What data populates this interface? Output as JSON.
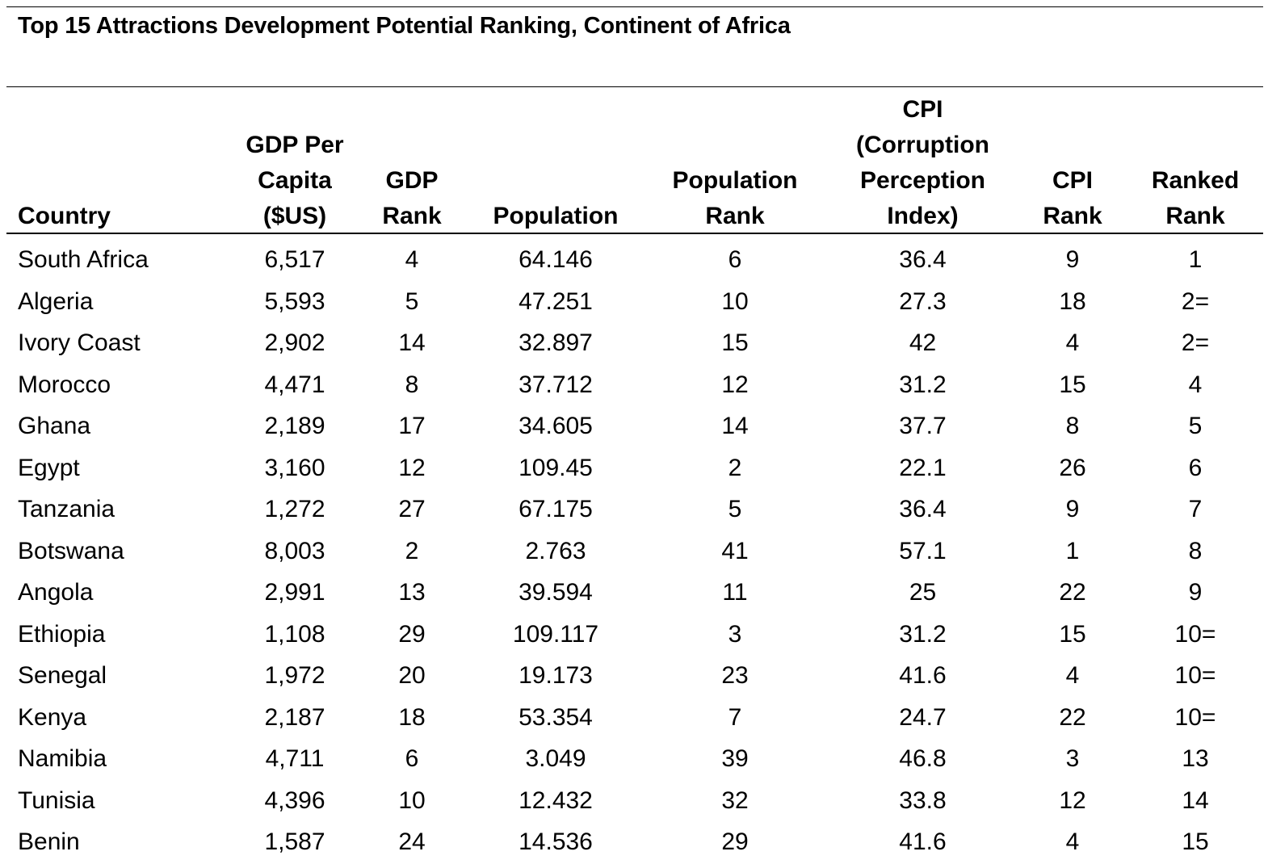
{
  "title": "Top 15 Attractions Development Potential Ranking, Continent of Africa",
  "chart_data": {
    "type": "table",
    "title": "Top 15 Attractions Development Potential Ranking, Continent of Africa",
    "columns": [
      "Country",
      "GDP Per\nCapita\n($US)",
      "GDP\nRank",
      "Population",
      "Population\nRank",
      "CPI\n(Corruption\nPerception\nIndex)",
      "CPI\nRank",
      "Ranked\nRank"
    ],
    "rows": [
      [
        "South Africa",
        "6,517",
        "4",
        "64.146",
        "6",
        "36.4",
        "9",
        "1"
      ],
      [
        "Algeria",
        "5,593",
        "5",
        "47.251",
        "10",
        "27.3",
        "18",
        "2="
      ],
      [
        "Ivory Coast",
        "2,902",
        "14",
        "32.897",
        "15",
        "42",
        "4",
        "2="
      ],
      [
        "Morocco",
        "4,471",
        "8",
        "37.712",
        "12",
        "31.2",
        "15",
        "4"
      ],
      [
        "Ghana",
        "2,189",
        "17",
        "34.605",
        "14",
        "37.7",
        "8",
        "5"
      ],
      [
        "Egypt",
        "3,160",
        "12",
        "109.45",
        "2",
        "22.1",
        "26",
        "6"
      ],
      [
        "Tanzania",
        "1,272",
        "27",
        "67.175",
        "5",
        "36.4",
        "9",
        "7"
      ],
      [
        "Botswana",
        "8,003",
        "2",
        "2.763",
        "41",
        "57.1",
        "1",
        "8"
      ],
      [
        "Angola",
        "2,991",
        "13",
        "39.594",
        "11",
        "25",
        "22",
        "9"
      ],
      [
        "Ethiopia",
        "1,108",
        "29",
        "109.117",
        "3",
        "31.2",
        "15",
        "10="
      ],
      [
        "Senegal",
        "1,972",
        "20",
        "19.173",
        "23",
        "41.6",
        "4",
        "10="
      ],
      [
        "Kenya",
        "2,187",
        "18",
        "53.354",
        "7",
        "24.7",
        "22",
        "10="
      ],
      [
        "Namibia",
        "4,711",
        "6",
        "3.049",
        "39",
        "46.8",
        "3",
        "13"
      ],
      [
        "Tunisia",
        "4,396",
        "10",
        "12.432",
        "32",
        "33.8",
        "12",
        "14"
      ],
      [
        "Benin",
        "1,587",
        "24",
        "14.536",
        "29",
        "41.6",
        "4",
        "15"
      ]
    ]
  }
}
